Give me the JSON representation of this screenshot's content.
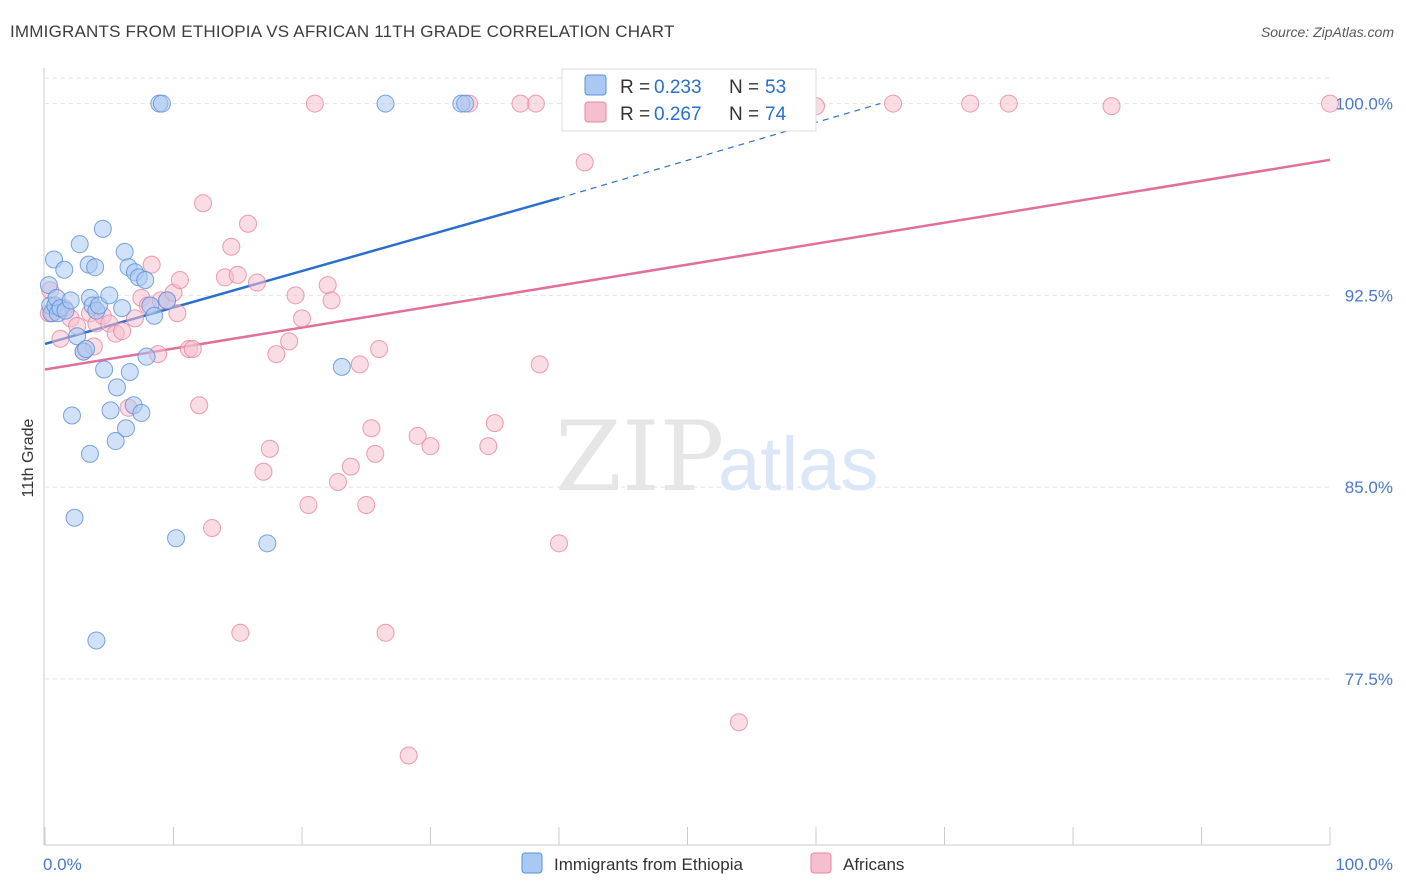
{
  "title": "IMMIGRANTS FROM ETHIOPIA VS AFRICAN 11TH GRADE CORRELATION CHART",
  "source": "Source: ZipAtlas.com",
  "watermark": {
    "zip": "ZIP",
    "atlas": "atlas"
  },
  "colors": {
    "blue_fill": "#a9c8f2",
    "blue_stroke": "#5b8fd6",
    "blue_line": "#2a6fce",
    "pink_fill": "#f6bfd0",
    "pink_stroke": "#e8859f",
    "pink_line": "#e0709a",
    "grid": "#e2e2e2",
    "label": "#4a78c9"
  },
  "legend": {
    "rows": [
      {
        "r_label": "R = ",
        "r_value": "0.233",
        "n_label": "N = ",
        "n_value": "53",
        "series": "blue"
      },
      {
        "r_label": "R = ",
        "r_value": "0.267",
        "n_label": "N = ",
        "n_value": "74",
        "series": "pink"
      }
    ]
  },
  "chart_data": {
    "type": "scatter",
    "title": "IMMIGRANTS FROM ETHIOPIA VS AFRICAN 11TH GRADE CORRELATION CHART",
    "xlabel": "",
    "ylabel": "11th Grade",
    "xlim": [
      0,
      100
    ],
    "ylim": [
      71.0,
      101.0
    ],
    "x_tick_labels": [
      "0.0%",
      "100.0%"
    ],
    "y_ticks": [
      77.5,
      85.0,
      92.5,
      100.0
    ],
    "y_tick_labels": [
      "77.5%",
      "85.0%",
      "92.5%",
      "100.0%"
    ],
    "grid": true,
    "legend_placement": "top-center",
    "series": [
      {
        "name": "Immigrants from Ethiopia",
        "color": "blue",
        "R": 0.233,
        "N": 53,
        "trend": {
          "x0": 0,
          "y0": 90.6,
          "x1": 40,
          "y1": 96.3,
          "dashed_to_x": 65,
          "dashed_to_y": 100.0
        },
        "points": [
          [
            0.3,
            92.9
          ],
          [
            0.4,
            92.1
          ],
          [
            0.5,
            91.8
          ],
          [
            0.7,
            93.9
          ],
          [
            0.8,
            92.1
          ],
          [
            0.9,
            92.4
          ],
          [
            1.0,
            91.8
          ],
          [
            1.2,
            92.0
          ],
          [
            1.5,
            93.5
          ],
          [
            1.6,
            91.9
          ],
          [
            2.0,
            92.3
          ],
          [
            2.1,
            87.8
          ],
          [
            2.3,
            83.8
          ],
          [
            2.5,
            90.9
          ],
          [
            2.7,
            94.5
          ],
          [
            3.0,
            90.3
          ],
          [
            3.2,
            90.4
          ],
          [
            3.4,
            93.7
          ],
          [
            3.5,
            92.4
          ],
          [
            3.7,
            92.1
          ],
          [
            3.9,
            93.6
          ],
          [
            4.0,
            91.9
          ],
          [
            4.2,
            92.1
          ],
          [
            4.5,
            95.1
          ],
          [
            4.6,
            89.6
          ],
          [
            5.0,
            92.5
          ],
          [
            5.1,
            88.0
          ],
          [
            5.5,
            86.8
          ],
          [
            5.6,
            88.9
          ],
          [
            6.0,
            92.0
          ],
          [
            6.2,
            94.2
          ],
          [
            6.3,
            87.3
          ],
          [
            6.5,
            93.6
          ],
          [
            6.6,
            89.5
          ],
          [
            6.9,
            88.2
          ],
          [
            7.0,
            93.4
          ],
          [
            7.3,
            93.2
          ],
          [
            7.5,
            87.9
          ],
          [
            7.8,
            93.1
          ],
          [
            7.9,
            90.1
          ],
          [
            8.2,
            92.1
          ],
          [
            8.5,
            91.7
          ],
          [
            8.9,
            100.0
          ],
          [
            9.1,
            100.0
          ],
          [
            9.5,
            92.3
          ],
          [
            10.2,
            83.0
          ],
          [
            17.3,
            82.8
          ],
          [
            23.1,
            89.7
          ],
          [
            26.5,
            100.0
          ],
          [
            32.4,
            100.0
          ],
          [
            32.7,
            100.0
          ],
          [
            3.5,
            86.3
          ],
          [
            4.0,
            79.0
          ]
        ]
      },
      {
        "name": "Africans",
        "color": "pink",
        "R": 0.267,
        "N": 74,
        "trend": {
          "x0": 0,
          "y0": 89.6,
          "x1": 100,
          "y1": 97.8
        },
        "points": [
          [
            0.3,
            91.8
          ],
          [
            0.4,
            92.7
          ],
          [
            0.6,
            91.8
          ],
          [
            1.2,
            90.8
          ],
          [
            1.5,
            92.0
          ],
          [
            2.0,
            91.6
          ],
          [
            2.5,
            91.3
          ],
          [
            3.0,
            90.3
          ],
          [
            3.5,
            91.8
          ],
          [
            3.8,
            90.5
          ],
          [
            4.0,
            91.4
          ],
          [
            4.5,
            91.7
          ],
          [
            5.0,
            91.4
          ],
          [
            5.5,
            91.0
          ],
          [
            6.0,
            91.1
          ],
          [
            6.5,
            88.1
          ],
          [
            7.0,
            91.6
          ],
          [
            7.5,
            92.4
          ],
          [
            8.0,
            92.1
          ],
          [
            8.3,
            93.7
          ],
          [
            8.8,
            90.2
          ],
          [
            9.0,
            92.3
          ],
          [
            9.5,
            92.3
          ],
          [
            10.0,
            92.6
          ],
          [
            10.3,
            91.8
          ],
          [
            10.5,
            93.1
          ],
          [
            11.2,
            90.4
          ],
          [
            11.5,
            90.4
          ],
          [
            12.0,
            88.2
          ],
          [
            12.3,
            96.1
          ],
          [
            13.0,
            83.4
          ],
          [
            14.0,
            93.2
          ],
          [
            14.5,
            94.4
          ],
          [
            15.0,
            93.3
          ],
          [
            15.2,
            79.3
          ],
          [
            15.8,
            95.3
          ],
          [
            16.5,
            93.0
          ],
          [
            17.0,
            85.6
          ],
          [
            17.5,
            86.5
          ],
          [
            18.0,
            90.2
          ],
          [
            19.0,
            90.7
          ],
          [
            19.5,
            92.5
          ],
          [
            20.0,
            91.6
          ],
          [
            20.5,
            84.3
          ],
          [
            21.0,
            100.0
          ],
          [
            22.0,
            92.9
          ],
          [
            22.3,
            92.3
          ],
          [
            22.8,
            85.2
          ],
          [
            23.8,
            85.8
          ],
          [
            24.5,
            89.8
          ],
          [
            25.0,
            84.3
          ],
          [
            25.4,
            87.3
          ],
          [
            25.7,
            86.3
          ],
          [
            26.0,
            90.4
          ],
          [
            26.5,
            79.3
          ],
          [
            28.3,
            74.5
          ],
          [
            29.0,
            87.0
          ],
          [
            30.0,
            86.6
          ],
          [
            34.5,
            86.6
          ],
          [
            35.0,
            87.5
          ],
          [
            38.2,
            100.0
          ],
          [
            38.5,
            89.8
          ],
          [
            40.0,
            82.8
          ],
          [
            42.0,
            97.7
          ],
          [
            54.0,
            75.8
          ],
          [
            55.0,
            100.0
          ],
          [
            60.0,
            99.9
          ],
          [
            66.0,
            100.0
          ],
          [
            72.0,
            100.0
          ],
          [
            75.0,
            100.0
          ],
          [
            83.0,
            99.9
          ],
          [
            100.0,
            100.0
          ],
          [
            33.0,
            100.0
          ],
          [
            37.0,
            100.0
          ]
        ]
      }
    ]
  },
  "bottom_legend": [
    {
      "label": "Immigrants from Ethiopia",
      "color": "blue"
    },
    {
      "label": "Africans",
      "color": "pink"
    }
  ]
}
